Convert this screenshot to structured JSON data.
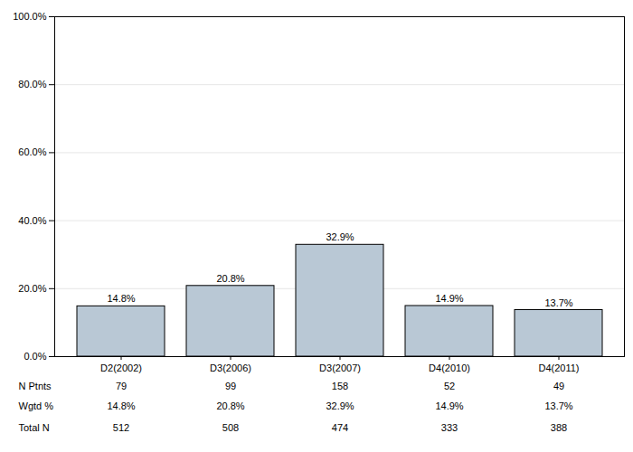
{
  "chart_data": {
    "type": "bar",
    "categories": [
      "D2(2002)",
      "D3(2006)",
      "D3(2007)",
      "D4(2010)",
      "D4(2011)"
    ],
    "values": [
      14.8,
      20.8,
      32.9,
      14.9,
      13.7
    ],
    "value_labels": [
      "14.8%",
      "20.8%",
      "32.9%",
      "14.9%",
      "13.7%"
    ],
    "data_labels": true,
    "color": "#b9c8d5",
    "ylim": [
      0,
      100
    ],
    "yticks": [
      {
        "value": 0,
        "label": "0.0%"
      },
      {
        "value": 20,
        "label": "20.0%"
      },
      {
        "value": 40,
        "label": "40.0%"
      },
      {
        "value": 60,
        "label": "60.0%"
      },
      {
        "value": 80,
        "label": "80.0%"
      },
      {
        "value": 100,
        "label": "100.0%"
      }
    ],
    "grid": true,
    "table": {
      "rows": [
        {
          "label": "N Ptnts",
          "values": [
            79,
            99,
            158,
            52,
            49
          ]
        },
        {
          "label": "Wgtd %",
          "values": [
            "14.8%",
            "20.8%",
            "32.9%",
            "14.9%",
            "13.7%"
          ]
        },
        {
          "label": "Total N",
          "values": [
            512,
            508,
            474,
            333,
            388
          ]
        }
      ]
    }
  }
}
